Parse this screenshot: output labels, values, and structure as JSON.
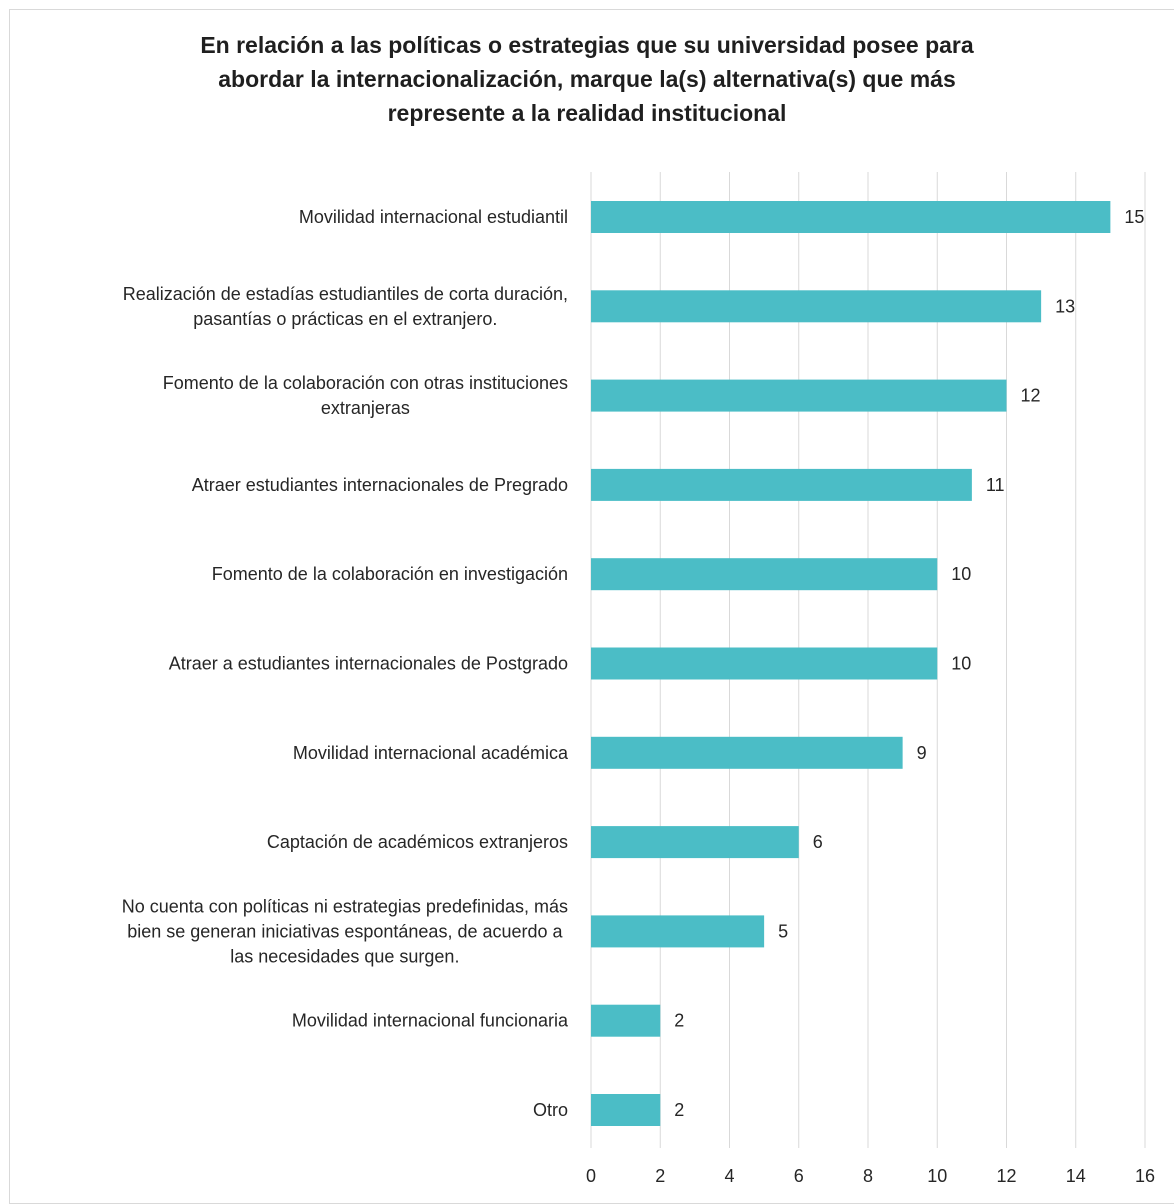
{
  "chart_data": {
    "type": "bar",
    "orientation": "horizontal",
    "title": [
      "En relación a las políticas o estrategias que su universidad posee para",
      "abordar la internacionalización, marque la(s) alternativa(s) que más",
      "represente a la realidad institucional"
    ],
    "categories": [
      [
        "Movilidad internacional estudiantil"
      ],
      [
        "Realización de estadías estudiantiles de corta duración,",
        "pasantías o prácticas en el extranjero."
      ],
      [
        "Fomento de la colaboración con otras instituciones",
        "extranjeras"
      ],
      [
        "Atraer estudiantes internacionales de Pregrado"
      ],
      [
        "Fomento de la colaboración en investigación"
      ],
      [
        "Atraer a estudiantes internacionales de Postgrado"
      ],
      [
        "Movilidad internacional académica"
      ],
      [
        "Captación de académicos extranjeros"
      ],
      [
        "No cuenta con políticas ni estrategias predefinidas, más",
        "bien se generan iniciativas espontáneas, de acuerdo a",
        "las necesidades que surgen."
      ],
      [
        "Movilidad internacional funcionaria"
      ],
      [
        "Otro"
      ]
    ],
    "values": [
      15,
      13,
      12,
      11,
      10,
      10,
      9,
      6,
      5,
      2,
      2
    ],
    "xlim": [
      0,
      16
    ],
    "xticks": [
      "0",
      "2",
      "4",
      "6",
      "8",
      "10",
      "12",
      "14",
      "16"
    ],
    "grid": true,
    "legend": "none",
    "colors": {
      "bar": "#4bbdc6",
      "grid": "#d9d9d9",
      "text": "#262626"
    }
  }
}
